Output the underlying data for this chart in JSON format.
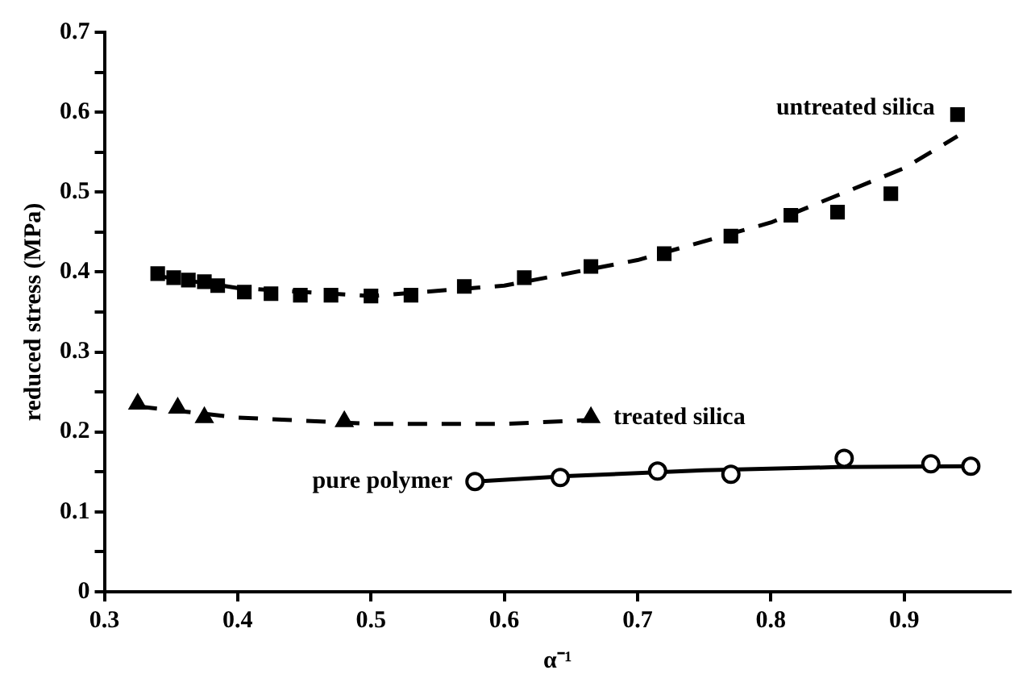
{
  "chart_data": {
    "type": "scatter",
    "xlabel": "α⁻¹",
    "ylabel": "reduced stress (MPa)",
    "xlim": [
      0.3,
      0.98
    ],
    "xticks": [
      0.3,
      0.4,
      0.5,
      0.6,
      0.7,
      0.8,
      0.9
    ],
    "ylim": [
      0,
      0.7
    ],
    "yticks": [
      0,
      {
        "value": 0.05,
        "label": null
      },
      0.1,
      {
        "value": 0.15,
        "label": null
      },
      0.2,
      {
        "value": 0.25,
        "label": null
      },
      0.3,
      {
        "value": 0.35,
        "label": null
      },
      0.4,
      {
        "value": 0.45,
        "label": null
      },
      0.5,
      {
        "value": 0.55,
        "label": null
      },
      0.6,
      {
        "value": 0.65,
        "label": null
      },
      0.7
    ],
    "grid": false,
    "legend": false,
    "series": [
      {
        "name": "untreated silica",
        "marker": "square",
        "color": "#000000",
        "x": [
          0.34,
          0.352,
          0.363,
          0.375,
          0.385,
          0.405,
          0.425,
          0.447,
          0.47,
          0.5,
          0.53,
          0.57,
          0.615,
          0.665,
          0.72,
          0.77,
          0.815,
          0.85,
          0.89,
          0.94
        ],
        "values": [
          0.398,
          0.393,
          0.39,
          0.388,
          0.383,
          0.375,
          0.373,
          0.371,
          0.371,
          0.37,
          0.371,
          0.382,
          0.393,
          0.407,
          0.423,
          0.445,
          0.471,
          0.475,
          0.498,
          0.597
        ]
      },
      {
        "name": "treated silica",
        "marker": "triangle",
        "color": "#000000",
        "x": [
          0.325,
          0.355,
          0.375,
          0.48,
          0.665
        ],
        "values": [
          0.235,
          0.23,
          0.218,
          0.213,
          0.218
        ]
      },
      {
        "name": "pure polymer",
        "marker": "circle",
        "color": "#000000",
        "x": [
          0.578,
          0.642,
          0.715,
          0.77,
          0.855,
          0.92,
          0.95
        ],
        "values": [
          0.138,
          0.143,
          0.151,
          0.147,
          0.167,
          0.16,
          0.157
        ]
      },
      {
        "type": "line",
        "marker": "none",
        "line_style": "dashed",
        "color": "#000000",
        "x": [
          0.34,
          0.4,
          0.5,
          0.6,
          0.7,
          0.8,
          0.9,
          0.94
        ],
        "values": [
          0.395,
          0.38,
          0.37,
          0.383,
          0.415,
          0.462,
          0.53,
          0.57
        ]
      },
      {
        "type": "line",
        "marker": "none",
        "line_style": "dashed",
        "color": "#000000",
        "x": [
          0.325,
          0.4,
          0.5,
          0.6,
          0.665
        ],
        "values": [
          0.232,
          0.218,
          0.21,
          0.21,
          0.215
        ]
      },
      {
        "type": "line",
        "marker": "none",
        "line_style": "solid",
        "color": "#000000",
        "x": [
          0.578,
          0.65,
          0.75,
          0.85,
          0.95
        ],
        "values": [
          0.138,
          0.145,
          0.152,
          0.156,
          0.157
        ]
      }
    ]
  }
}
